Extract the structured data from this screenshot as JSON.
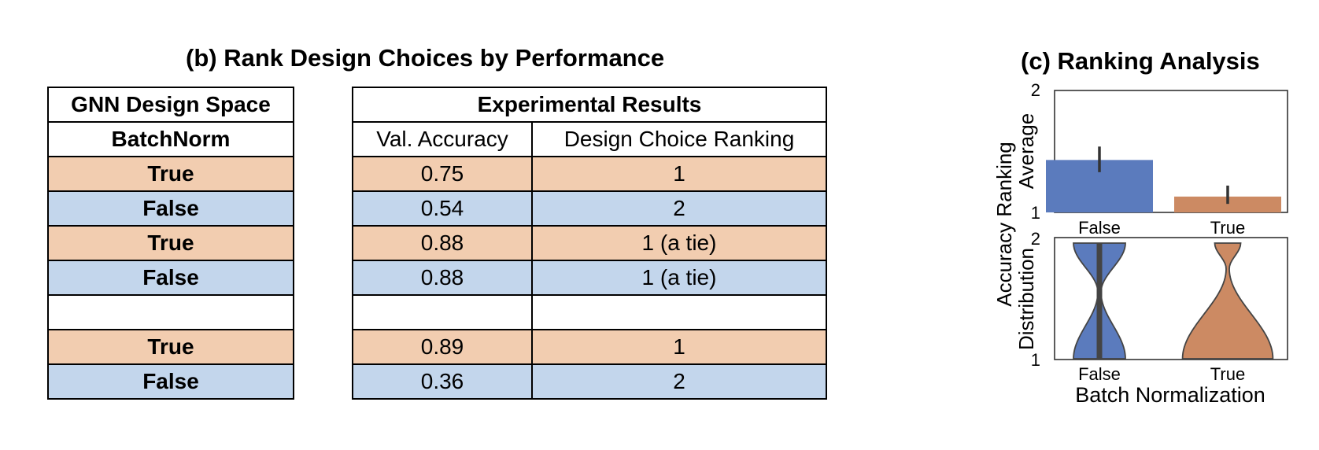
{
  "panel_b": {
    "title": "(b) Rank Design Choices by Performance",
    "design_space": {
      "header": "GNN Design Space",
      "column": "BatchNorm",
      "rows": [
        "True",
        "False",
        "True",
        "False",
        "",
        "True",
        "False"
      ]
    },
    "results": {
      "header": "Experimental Results",
      "columns": [
        "Val. Accuracy",
        "Design Choice Ranking"
      ],
      "rows": [
        [
          "0.75",
          "1"
        ],
        [
          "0.54",
          "2"
        ],
        [
          "0.88",
          "1 (a tie)"
        ],
        [
          "0.88",
          "1 (a tie)"
        ],
        [
          "",
          ""
        ],
        [
          "0.89",
          "1"
        ],
        [
          "0.36",
          "2"
        ]
      ]
    },
    "row_colors": [
      "orange",
      "blue",
      "orange",
      "blue",
      "white",
      "orange",
      "blue"
    ]
  },
  "chart_data": [
    {
      "type": "bar",
      "title": "(c) Ranking Analysis",
      "categories": [
        "False",
        "True"
      ],
      "values": [
        1.43,
        1.13
      ],
      "error_low": [
        1.33,
        1.07
      ],
      "error_high": [
        1.54,
        1.22
      ],
      "ylabel": "Average",
      "ylim": [
        1,
        2
      ],
      "yticks": [
        "1",
        "2"
      ],
      "colors": [
        "#5b7bbd",
        "#cc8a63"
      ]
    },
    {
      "type": "violin",
      "categories": [
        "False",
        "True"
      ],
      "ylabel": "Distribution",
      "ylim": [
        1,
        2
      ],
      "yticks": [
        "1",
        "2"
      ],
      "xlabel": "Batch Normalization",
      "shared_ylabel": "Accuracy Ranking",
      "distribution_share_rank1": [
        0.5,
        0.87
      ],
      "colors": [
        "#5b7bbd",
        "#cc8a63"
      ]
    }
  ]
}
